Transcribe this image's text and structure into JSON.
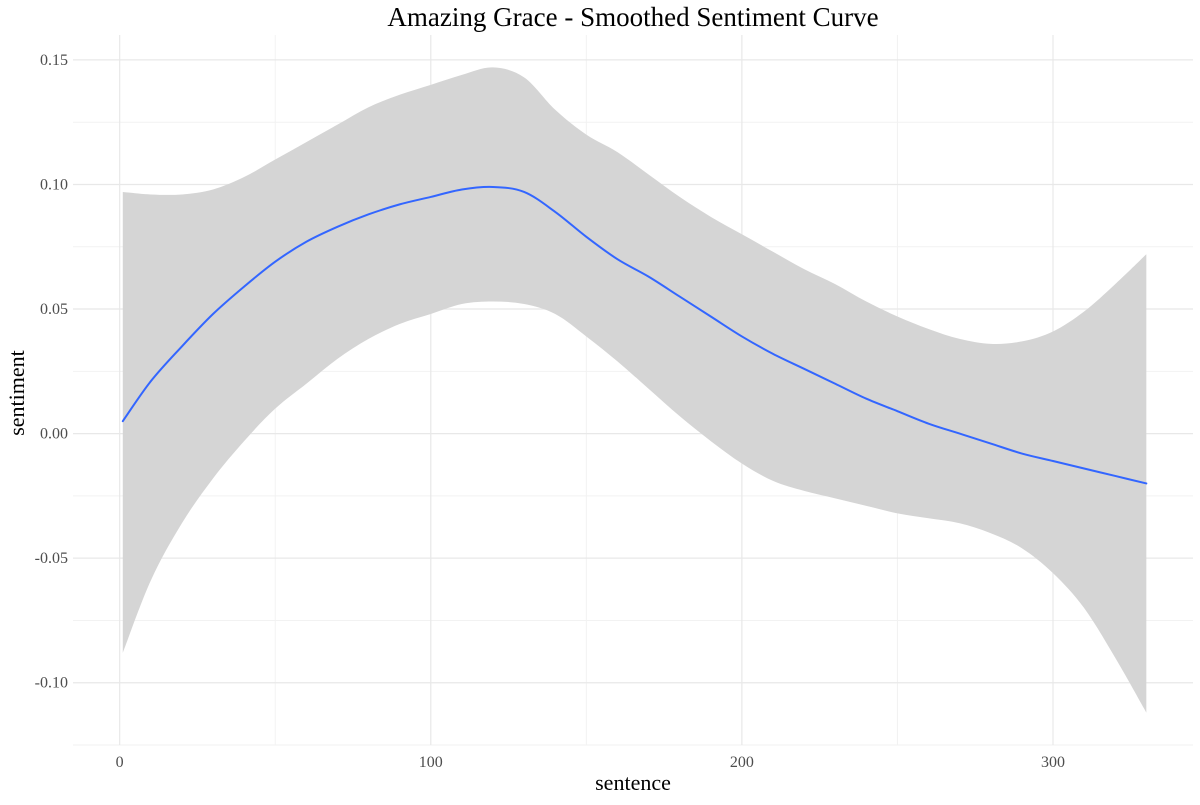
{
  "chart_data": {
    "type": "line",
    "title": "Amazing Grace - Smoothed Sentiment Curve",
    "xlabel": "sentence",
    "ylabel": "sentiment",
    "xlim": [
      -15,
      345
    ],
    "ylim": [
      -0.125,
      0.16
    ],
    "x_ticks": [
      0,
      100,
      200,
      300
    ],
    "x_tick_labels": [
      "0",
      "100",
      "200",
      "300"
    ],
    "y_ticks": [
      -0.1,
      -0.05,
      0.0,
      0.05,
      0.1,
      0.15
    ],
    "y_tick_labels": [
      "-0.10",
      "-0.05",
      "0.00",
      "0.05",
      "0.10",
      "0.15"
    ],
    "grid": true,
    "legend": "none",
    "colors": {
      "line": "#3366ff",
      "ribbon": "#d5d5d5",
      "major_grid": "#e8e8e8",
      "minor_grid": "#f2f2f2"
    },
    "series": [
      {
        "values_x": [
          1,
          10,
          20,
          30,
          40,
          50,
          60,
          70,
          80,
          90,
          100,
          110,
          120,
          130,
          140,
          150,
          160,
          170,
          180,
          190,
          200,
          210,
          220,
          230,
          240,
          250,
          260,
          270,
          280,
          290,
          300,
          310,
          320,
          330
        ],
        "values": [
          0.005,
          0.021,
          0.035,
          0.048,
          0.059,
          0.069,
          0.077,
          0.083,
          0.088,
          0.092,
          0.095,
          0.098,
          0.099,
          0.097,
          0.089,
          0.079,
          0.07,
          0.063,
          0.055,
          0.047,
          0.039,
          0.032,
          0.026,
          0.02,
          0.014,
          0.009,
          0.004,
          0.0,
          -0.004,
          -0.008,
          -0.011,
          -0.014,
          -0.017,
          -0.02
        ],
        "lower": [
          -0.088,
          -0.059,
          -0.036,
          -0.018,
          -0.003,
          0.01,
          0.02,
          0.03,
          0.038,
          0.044,
          0.048,
          0.052,
          0.053,
          0.052,
          0.048,
          0.039,
          0.029,
          0.018,
          0.007,
          -0.003,
          -0.012,
          -0.019,
          -0.023,
          -0.026,
          -0.029,
          -0.032,
          -0.034,
          -0.036,
          -0.04,
          -0.046,
          -0.056,
          -0.07,
          -0.09,
          -0.112
        ],
        "upper": [
          0.097,
          0.096,
          0.096,
          0.098,
          0.103,
          0.11,
          0.117,
          0.124,
          0.131,
          0.136,
          0.14,
          0.144,
          0.147,
          0.143,
          0.13,
          0.12,
          0.113,
          0.104,
          0.095,
          0.087,
          0.08,
          0.073,
          0.066,
          0.06,
          0.053,
          0.047,
          0.042,
          0.038,
          0.036,
          0.037,
          0.041,
          0.049,
          0.06,
          0.072
        ]
      }
    ]
  }
}
